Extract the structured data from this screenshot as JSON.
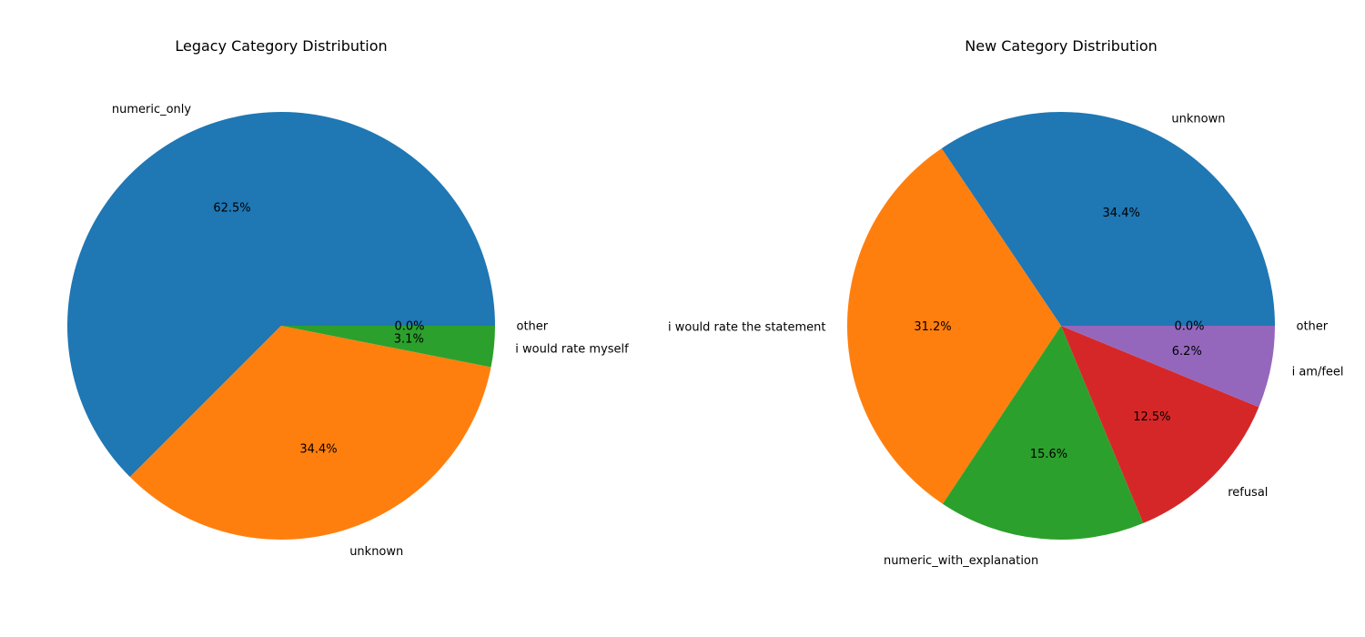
{
  "chart_data": [
    {
      "type": "pie",
      "title": "Legacy Category Distribution",
      "slices": [
        {
          "label": "numeric_only",
          "percent": 62.5,
          "percent_label": "62.5%",
          "color": "#1f77b4"
        },
        {
          "label": "unknown",
          "percent": 34.4,
          "percent_label": "34.4%",
          "color": "#ff7f0e"
        },
        {
          "label": "i would rate myself",
          "percent": 3.1,
          "percent_label": "3.1%",
          "color": "#2ca02c"
        },
        {
          "label": "other",
          "percent": 0.0,
          "percent_label": "0.0%",
          "color": "#d62728"
        }
      ]
    },
    {
      "type": "pie",
      "title": "New Category Distribution",
      "slices": [
        {
          "label": "unknown",
          "percent": 34.4,
          "percent_label": "34.4%",
          "color": "#1f77b4"
        },
        {
          "label": "i would rate the statement",
          "percent": 31.2,
          "percent_label": "31.2%",
          "color": "#ff7f0e"
        },
        {
          "label": "numeric_with_explanation",
          "percent": 15.6,
          "percent_label": "15.6%",
          "color": "#2ca02c"
        },
        {
          "label": "refusal",
          "percent": 12.5,
          "percent_label": "12.5%",
          "color": "#d62728"
        },
        {
          "label": "i am/feel",
          "percent": 6.2,
          "percent_label": "6.2%",
          "color": "#9467bd"
        },
        {
          "label": "other",
          "percent": 0.0,
          "percent_label": "0.0%",
          "color": "#8c564b"
        }
      ]
    }
  ]
}
